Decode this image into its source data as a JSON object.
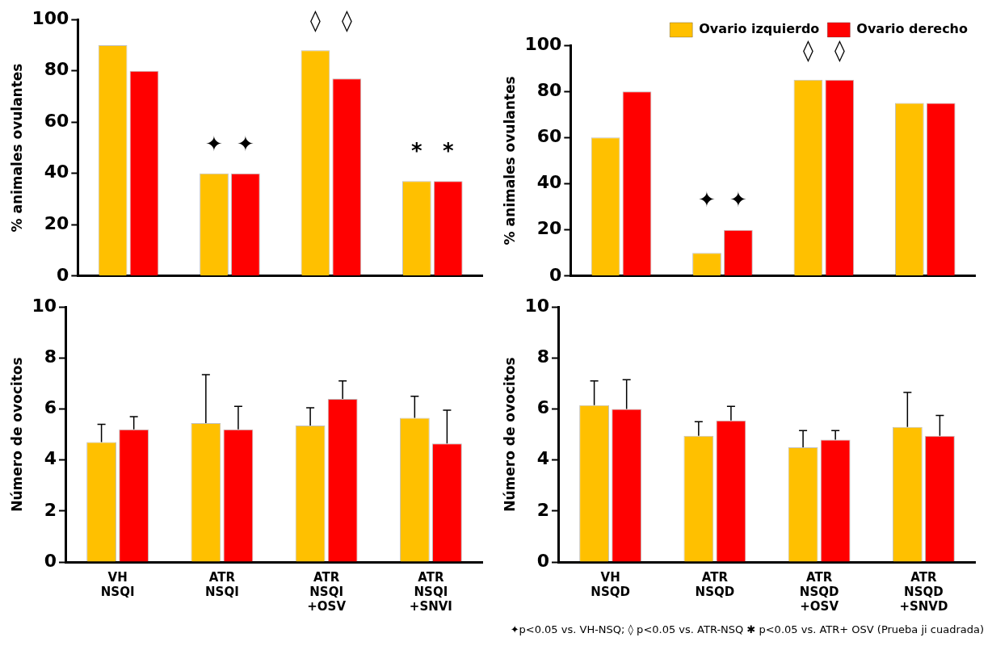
{
  "chart_data": [
    {
      "type": "bar",
      "ylabel": "% animales ovulantes",
      "categories": [
        null,
        null,
        null,
        null
      ],
      "tick_labels": "y",
      "ylim": [
        0,
        100
      ],
      "yticks": [
        0,
        20,
        40,
        60,
        80,
        100
      ],
      "grid": false,
      "legend": false,
      "series": [
        {
          "color": "#ffc000",
          "values": [
            90,
            40,
            88,
            37
          ],
          "value_labels": [
            null,
            "✦",
            "◊",
            "*"
          ]
        },
        {
          "color": "#ff0000",
          "values": [
            80,
            40,
            77,
            37
          ],
          "value_labels": [
            null,
            "✦",
            "◊",
            "*"
          ]
        }
      ]
    },
    {
      "type": "bar",
      "ylabel": "% animales ovulantes",
      "categories": [
        null,
        null,
        null,
        null
      ],
      "tick_labels": "y",
      "ylim": [
        0,
        100
      ],
      "yticks": [
        0,
        20,
        40,
        60,
        80,
        100
      ],
      "grid": false,
      "legend": "top right",
      "series": [
        {
          "name": "Ovario izquierdo",
          "color": "#ffc000",
          "values": [
            60,
            10,
            85,
            75
          ],
          "value_labels": [
            null,
            "✦",
            "◊",
            null
          ]
        },
        {
          "name": "Ovario derecho",
          "color": "#ff0000",
          "values": [
            80,
            20,
            85,
            75
          ],
          "value_labels": [
            null,
            "✦",
            "◊",
            null
          ]
        }
      ]
    },
    {
      "type": "bar",
      "ylabel": "Número de ovocitos",
      "categories": [
        "VH\nNSQI",
        "ATR\nNSQI",
        "ATR\nNSQI\n+OSV",
        "ATR\nNSQI\n+SNVI"
      ],
      "ylim": [
        0,
        10
      ],
      "yticks": [
        0,
        2,
        4,
        6,
        8,
        10
      ],
      "grid": false,
      "legend": false,
      "series": [
        {
          "color": "#ffc000",
          "values": [
            4.7,
            5.45,
            5.35,
            5.65
          ],
          "errors": [
            [
              4.7,
              5.4
            ],
            [
              5.45,
              7.35
            ],
            [
              5.35,
              6.05
            ],
            [
              5.65,
              6.5
            ]
          ]
        },
        {
          "color": "#ff0000",
          "values": [
            5.2,
            5.2,
            6.4,
            4.65
          ],
          "errors": [
            [
              5.2,
              5.7
            ],
            [
              5.2,
              6.1
            ],
            [
              6.4,
              7.1
            ],
            [
              4.65,
              5.95
            ]
          ]
        }
      ]
    },
    {
      "type": "bar",
      "ylabel": "Número de ovocitos",
      "categories": [
        "VH\nNSQD",
        "ATR\nNSQD",
        "ATR\nNSQD\n+OSV",
        "ATR\nNSQD\n+SNVD"
      ],
      "ylim": [
        0,
        10
      ],
      "yticks": [
        0,
        2,
        4,
        6,
        8,
        10
      ],
      "grid": false,
      "legend": false,
      "series": [
        {
          "color": "#ffc000",
          "values": [
            6.15,
            4.95,
            4.5,
            5.3
          ],
          "errors": [
            [
              6.15,
              7.1
            ],
            [
              4.95,
              5.5
            ],
            [
              4.5,
              5.15
            ],
            [
              5.3,
              6.65
            ]
          ]
        },
        {
          "color": "#ff0000",
          "values": [
            6.0,
            5.55,
            4.8,
            4.95
          ],
          "errors": [
            [
              6.0,
              7.15
            ],
            [
              5.55,
              6.1
            ],
            [
              4.8,
              5.15
            ],
            [
              4.95,
              5.75
            ]
          ]
        }
      ],
      "annotations": [
        "✦p<0.05 vs. VH-NSQ;   ◊ p<0.05 vs. ATR-NSQ   ✱ p<0.05 vs. ATR+ OSV (Prueba ji cuadrada)"
      ]
    }
  ]
}
